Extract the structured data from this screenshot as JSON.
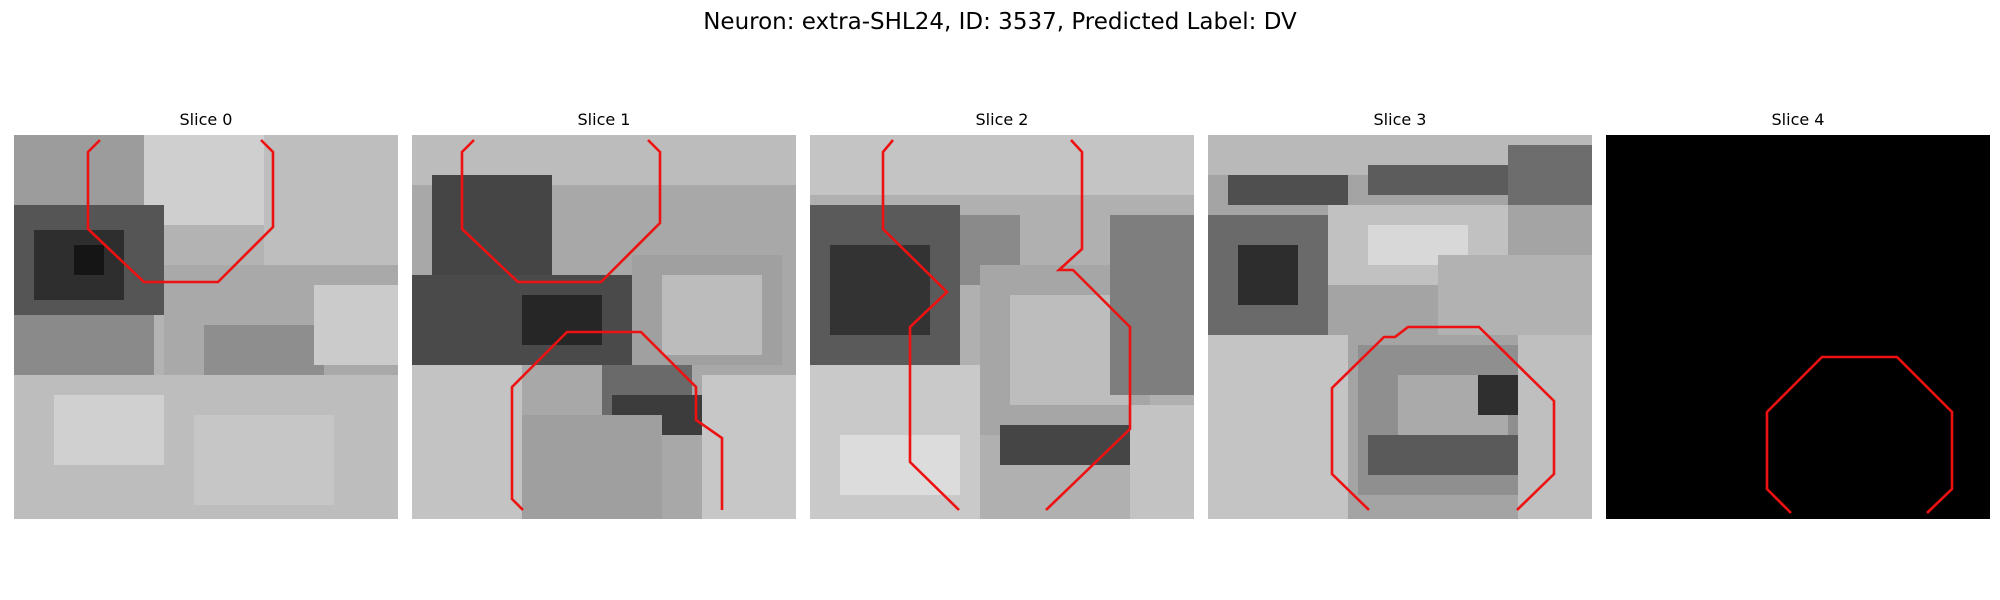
{
  "figure": {
    "title": "Neuron: extra-SHL24, ID: 3537, Predicted Label: DV"
  },
  "panels": [
    {
      "title": "Slice 0",
      "image": "grayscale-em-slice",
      "overlay_color": "#ee1111"
    },
    {
      "title": "Slice 1",
      "image": "grayscale-em-slice",
      "overlay_color": "#ee1111"
    },
    {
      "title": "Slice 2",
      "image": "grayscale-em-slice",
      "overlay_color": "#ee1111"
    },
    {
      "title": "Slice 3",
      "image": "grayscale-em-slice",
      "overlay_color": "#ee1111"
    },
    {
      "title": "Slice 4",
      "image": "black-empty-slice",
      "overlay_color": "#ee1111"
    }
  ]
}
